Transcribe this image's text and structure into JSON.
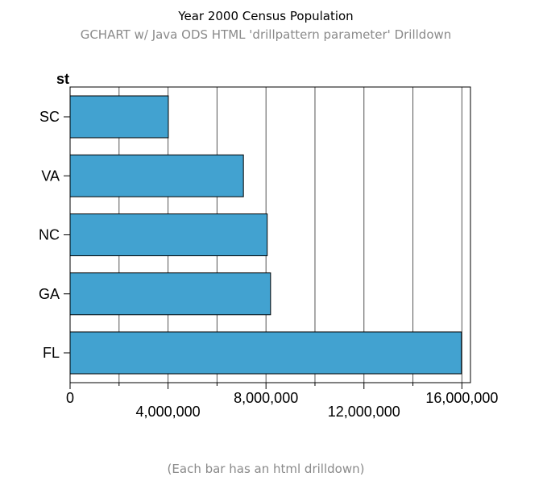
{
  "chart_data": {
    "type": "bar",
    "orientation": "horizontal",
    "title": "Year 2000 Census Population",
    "subtitle": "GCHART w/ Java ODS HTML 'drillpattern parameter' Drilldown",
    "ylabel": "st",
    "xlabel": "",
    "categories": [
      "SC",
      "VA",
      "NC",
      "GA",
      "FL"
    ],
    "values": [
      4012012,
      7078515,
      8049313,
      8186453,
      15982378
    ],
    "xlim": [
      0,
      16000000
    ],
    "major_ticks": [
      0,
      4000000,
      8000000,
      12000000,
      16000000
    ],
    "tick_labels": [
      "0",
      "4,000,000",
      "8,000,000",
      "12,000,000",
      "16,000,000"
    ],
    "grid": true,
    "bar_color": "#42a2d0",
    "footnote": "(Each bar has an html drilldown)"
  }
}
